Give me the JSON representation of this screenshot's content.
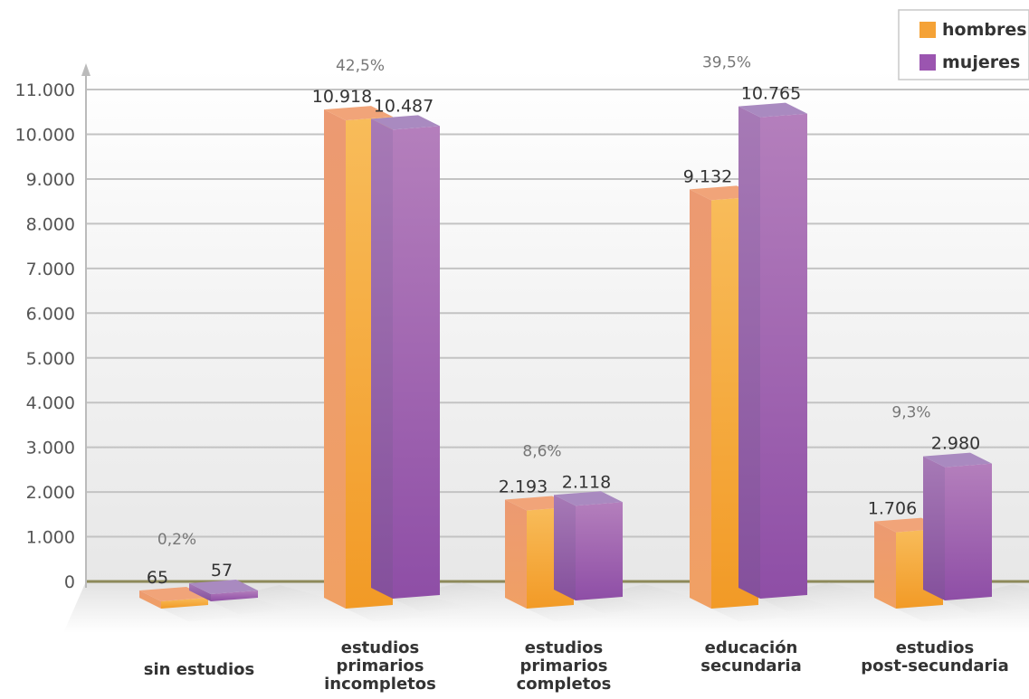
{
  "chart_data": {
    "type": "bar",
    "title": "",
    "xlabel": "",
    "ylabel": "",
    "ylim": [
      0,
      11000
    ],
    "yticks": [
      0,
      1000,
      2000,
      3000,
      4000,
      5000,
      6000,
      7000,
      8000,
      9000,
      10000,
      11000
    ],
    "ytick_labels": [
      "0",
      "1.000",
      "2.000",
      "3.000",
      "4.000",
      "5.000",
      "6.000",
      "7.000",
      "8.000",
      "9.000",
      "10.000",
      "11.000"
    ],
    "grid": true,
    "legend_position": "top-right",
    "categories": [
      [
        "sin estudios"
      ],
      [
        "estudios",
        "primarios",
        "incompletos"
      ],
      [
        "estudios",
        "primarios",
        "completos"
      ],
      [
        "educación",
        "secundaria"
      ],
      [
        "estudios",
        "post-secundaria"
      ]
    ],
    "series": [
      {
        "name": "hombres",
        "color": "#f5a236",
        "values": [
          65,
          10918,
          2193,
          9132,
          1706
        ],
        "value_labels": [
          "65",
          "10.918",
          "2.193",
          "9.132",
          "1.706"
        ]
      },
      {
        "name": "mujeres",
        "color": "#9b55b0",
        "values": [
          57,
          10487,
          2118,
          10765,
          2980
        ],
        "value_labels": [
          "57",
          "10.487",
          "2.118",
          "10.765",
          "2.980"
        ]
      }
    ],
    "percentages": [
      "0,2%",
      "42,5%",
      "8,6%",
      "39,5%",
      "9,3%"
    ]
  }
}
